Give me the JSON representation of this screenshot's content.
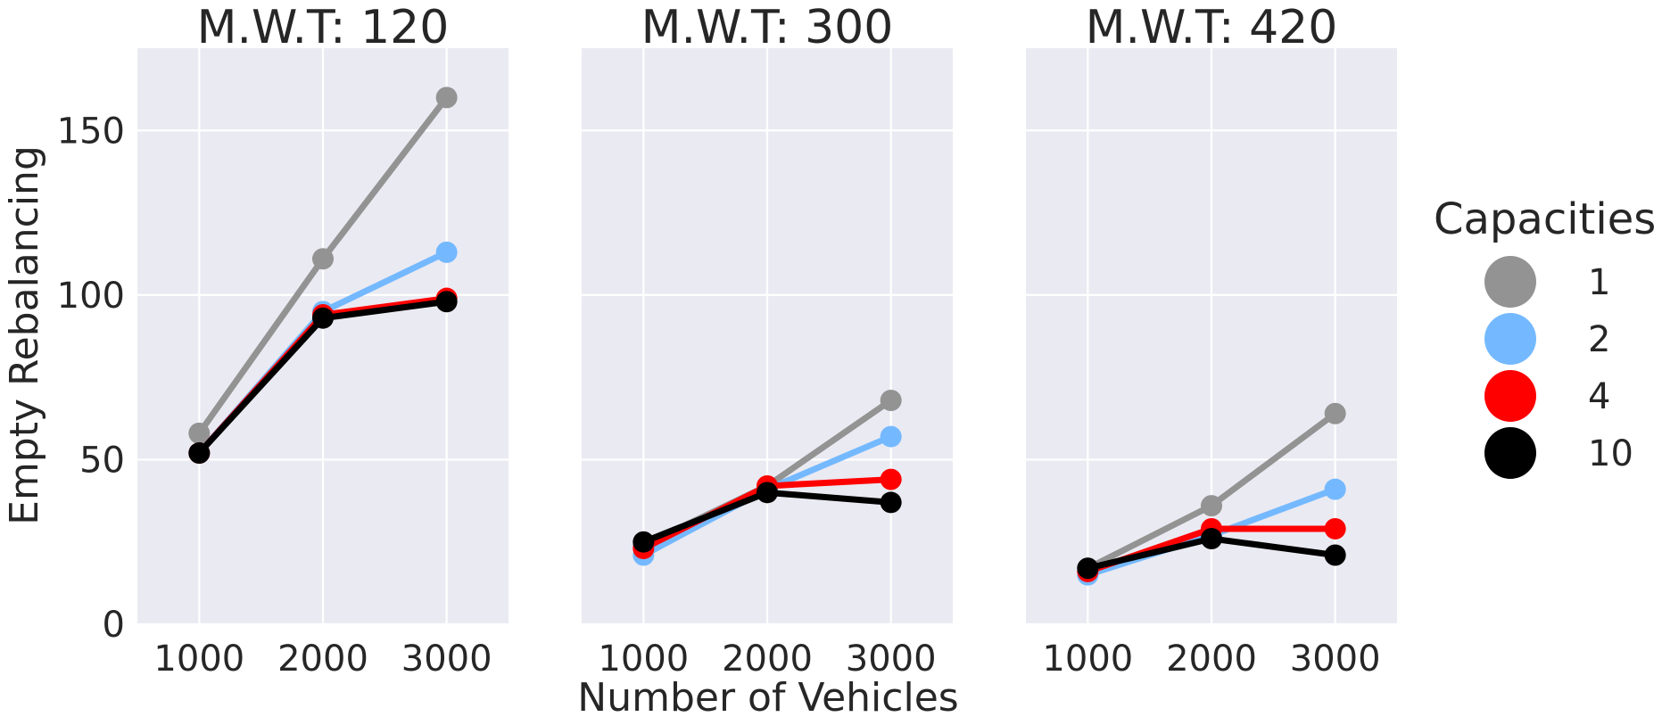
{
  "chart_data": {
    "type": "line",
    "xlabel": "Number of Vehicles",
    "ylabel": "Empty Rebalancing",
    "x": [
      1000,
      2000,
      3000
    ],
    "x_tick_labels": [
      "1000",
      "2000",
      "3000"
    ],
    "ylim": [
      0,
      175
    ],
    "y_ticks": [
      0,
      50,
      100,
      150
    ],
    "grid": true,
    "legend_title": "Capacities",
    "legend_position": "right",
    "series_colors": {
      "1": "#939393",
      "2": "#74b9ff",
      "4": "#ff0000",
      "10": "#000000"
    },
    "panels": [
      {
        "title": "M.W.T: 120",
        "series": [
          {
            "name": "1",
            "values": [
              58,
              111,
              160
            ]
          },
          {
            "name": "2",
            "values": [
              52,
              95,
              113
            ]
          },
          {
            "name": "4",
            "values": [
              52,
              94,
              99
            ]
          },
          {
            "name": "10",
            "values": [
              52,
              93,
              98
            ]
          }
        ]
      },
      {
        "title": "M.W.T: 300",
        "series": [
          {
            "name": "1",
            "values": [
              24,
              42,
              68
            ]
          },
          {
            "name": "2",
            "values": [
              21,
              41,
              57
            ]
          },
          {
            "name": "4",
            "values": [
              23,
              42,
              44
            ]
          },
          {
            "name": "10",
            "values": [
              25,
              40,
              37
            ]
          }
        ]
      },
      {
        "title": "M.W.T: 420",
        "series": [
          {
            "name": "1",
            "values": [
              17,
              36,
              64
            ]
          },
          {
            "name": "2",
            "values": [
              15,
              27,
              41
            ]
          },
          {
            "name": "4",
            "values": [
              16,
              29,
              29
            ]
          },
          {
            "name": "10",
            "values": [
              17,
              26,
              21
            ]
          }
        ]
      }
    ]
  }
}
